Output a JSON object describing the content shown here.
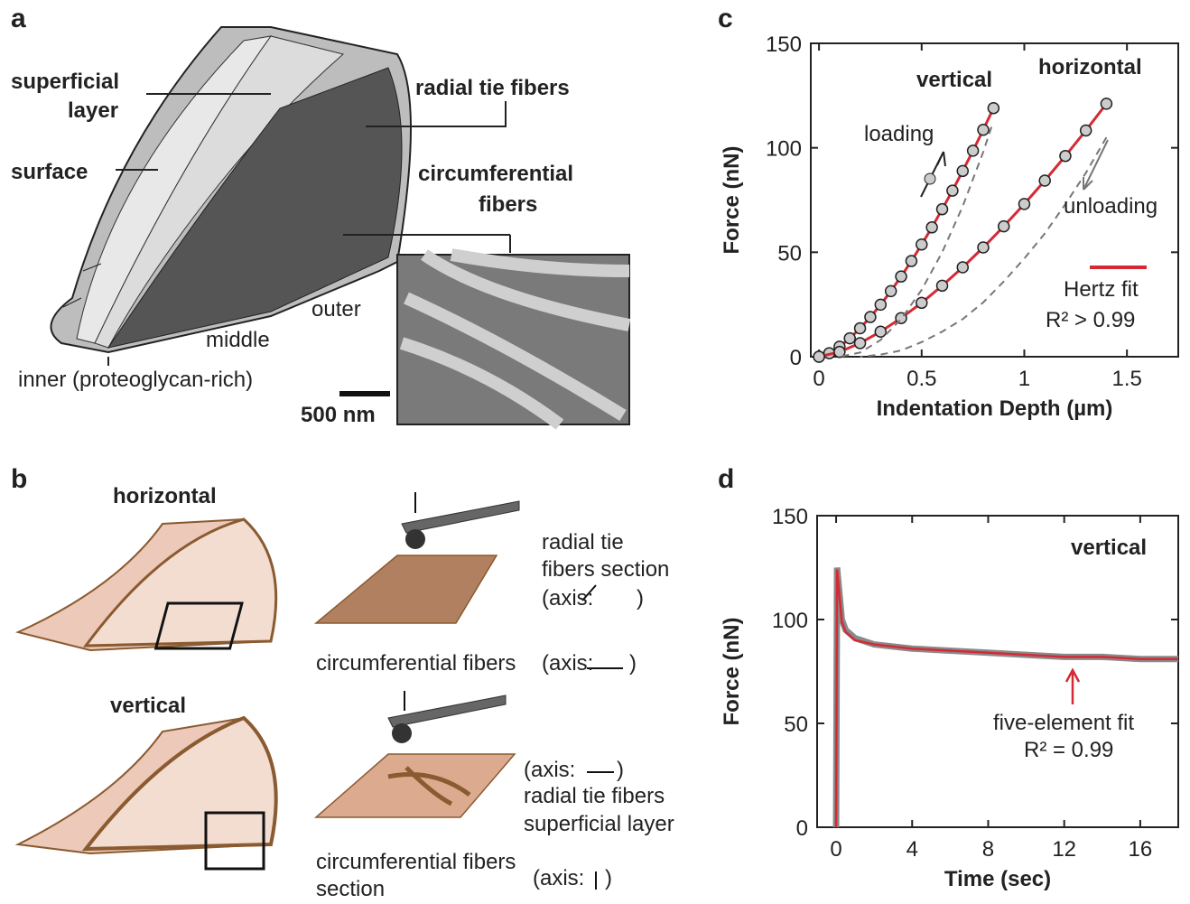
{
  "panels": {
    "a": {
      "letter": "a",
      "superficial_layer": [
        "superficial",
        "layer"
      ],
      "surface": "surface",
      "radial_tie_fibers": "radial tie fibers",
      "circumferential_fibers": [
        "circumferential",
        "fibers"
      ],
      "outer": "outer",
      "middle": "middle",
      "inner": "inner (proteoglycan-rich)",
      "scale_bar": "500 nm"
    },
    "b": {
      "letter": "b",
      "horizontal": "horizontal",
      "vertical": "vertical",
      "radial_section": [
        "radial tie",
        "fibers section",
        "(axis:"
      ],
      "circ_fibers": "circumferential fibers",
      "circ_axis": "(axis:",
      "vert_axis": "(axis:",
      "vert_radial": "radial tie fibers",
      "vert_superficial": "superficial layer",
      "vert_circ": [
        "circumferential fibers",
        "section"
      ],
      "vert_circ_axis": "(axis:"
    }
  },
  "chart_data": [
    {
      "type": "scatter-line",
      "letter": "c",
      "x_label": "Indentation Depth (µm)",
      "y_label": "Force (nN)",
      "xlim": [
        -0.04,
        1.75
      ],
      "ylim": [
        0,
        150
      ],
      "xticks": [
        0,
        0.5,
        1,
        1.5
      ],
      "yticks": [
        0,
        50,
        100,
        150
      ],
      "annotations": {
        "vertical": "vertical",
        "horizontal": "horizontal",
        "loading": "loading",
        "unloading": "unloading",
        "fit_label": "Hertz fit",
        "r2": "R² > 0.99"
      },
      "fit_color": "#d42a35",
      "series": [
        {
          "color": "#cccccc",
          "marker": true,
          "x": [
            0,
            0.05,
            0.1,
            0.15,
            0.2,
            0.25,
            0.3,
            0.35,
            0.4,
            0.45,
            0.5,
            0.55,
            0.6,
            0.65,
            0.7,
            0.75,
            0.8,
            0.85
          ],
          "values": [
            0,
            1.7,
            4.8,
            8.8,
            13.6,
            19.0,
            24.9,
            31.4,
            38.4,
            45.8,
            53.7,
            61.9,
            70.6,
            79.5,
            88.9,
            98.6,
            108.6,
            119
          ]
        },
        {
          "color": "#cccccc",
          "marker": true,
          "x": [
            0,
            0.1,
            0.2,
            0.3,
            0.4,
            0.5,
            0.6,
            0.7,
            0.8,
            0.9,
            1.0,
            1.1,
            1.2,
            1.3,
            1.4
          ],
          "values": [
            0,
            2.3,
            6.5,
            12.0,
            18.5,
            25.8,
            34.0,
            42.8,
            52.3,
            62.4,
            73.1,
            84.3,
            96.1,
            108.3,
            121.1
          ]
        },
        {
          "color": "#777777",
          "dash": true,
          "x": [
            0.84,
            0.8,
            0.7,
            0.6,
            0.5,
            0.4,
            0.3,
            0.2,
            0.1
          ],
          "values": [
            110,
            98,
            72,
            50,
            32,
            18,
            8,
            2,
            0
          ]
        },
        {
          "color": "#777777",
          "dash": true,
          "x": [
            1.4,
            1.3,
            1.2,
            1.1,
            1.0,
            0.9,
            0.8,
            0.7,
            0.6,
            0.5,
            0.4,
            0.3,
            0.2
          ],
          "values": [
            105,
            88,
            73,
            59,
            47,
            36,
            26,
            18,
            12,
            7,
            3,
            1,
            0
          ]
        }
      ]
    },
    {
      "type": "line",
      "letter": "d",
      "x_label": "Time (sec)",
      "y_label": "Force (nN)",
      "xlim": [
        -1,
        18
      ],
      "ylim": [
        0,
        150
      ],
      "xticks": [
        0,
        4,
        8,
        12,
        16
      ],
      "yticks": [
        0,
        50,
        100,
        150
      ],
      "annotations": {
        "vertical": "vertical",
        "fit_label": "five-element fit",
        "r2": "R² = 0.99"
      },
      "fit_color": "#d42a35",
      "series": [
        {
          "color": "#8a8a8a",
          "width": 7,
          "x": [
            0,
            0.05,
            0.15,
            0.3,
            0.5,
            1,
            2,
            4,
            6,
            8,
            10,
            12,
            14,
            16,
            18
          ],
          "values": [
            0,
            125,
            115,
            100,
            95,
            91,
            88,
            86,
            85,
            84,
            83,
            82,
            82,
            81,
            81
          ]
        },
        {
          "color": "#d42a35",
          "width": 2.5,
          "x": [
            0,
            0.05,
            0.15,
            0.3,
            0.5,
            1,
            2,
            4,
            6,
            8,
            10,
            12,
            14,
            16,
            18
          ],
          "values": [
            0,
            124,
            114,
            99,
            94,
            90,
            88,
            86,
            85,
            84,
            83,
            82,
            82,
            81,
            81
          ]
        }
      ]
    }
  ]
}
